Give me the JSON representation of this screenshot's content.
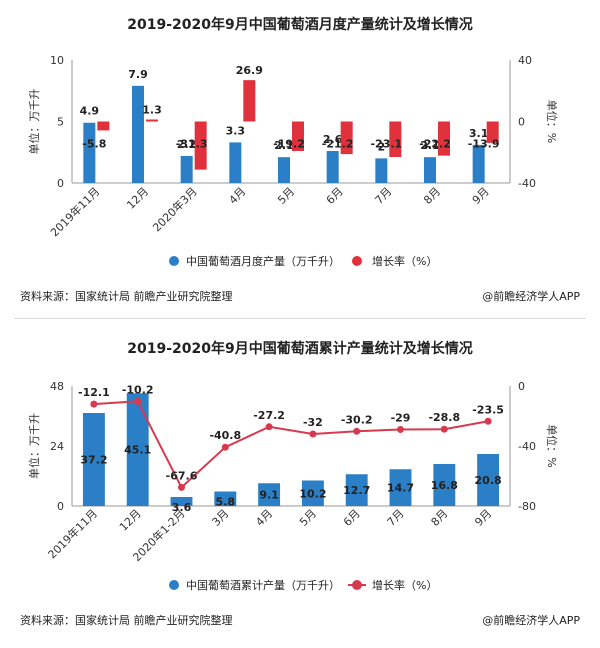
{
  "chart_data": [
    {
      "type": "bar",
      "title": "2019-2020年9月中国葡萄酒月度产量统计及增长情况",
      "categories": [
        "2019年11月",
        "12月",
        "2020年3月",
        "4月",
        "5月",
        "6月",
        "7月",
        "8月",
        "9月"
      ],
      "series": [
        {
          "name": "中国葡萄酒月度产量（万千升）",
          "type": "bar",
          "axis": "left",
          "color": "#2a7fc6",
          "values": [
            4.9,
            7.9,
            2.2,
            3.3,
            2.1,
            2.6,
            2,
            2.1,
            3.1
          ]
        },
        {
          "name": "增长率（%）",
          "type": "bar",
          "axis": "right",
          "color": "#e0313c",
          "values": [
            -5.8,
            1.3,
            -31.3,
            26.9,
            -19.2,
            -21.2,
            -23.1,
            -22.2,
            -13.9
          ]
        }
      ],
      "ylabel_left": "单位：万千升",
      "ylabel_right": "单位：%",
      "ylim_left": [
        0,
        10
      ],
      "yticks_left": [
        "0",
        "5",
        "10"
      ],
      "ylim_right": [
        -40,
        40
      ],
      "yticks_right": [
        "-40",
        "0",
        "40"
      ]
    },
    {
      "type": "bar",
      "title": "2019-2020年9月中国葡萄酒累计产量统计及增长情况",
      "categories": [
        "2019年11月",
        "12月",
        "2020年1-2月",
        "3月",
        "4月",
        "5月",
        "6月",
        "7月",
        "8月",
        "9月"
      ],
      "series": [
        {
          "name": "中国葡萄酒累计产量（万千升）",
          "type": "bar",
          "axis": "left",
          "color": "#2a7fc6",
          "values": [
            37.2,
            45.1,
            3.6,
            5.8,
            9.1,
            10.2,
            12.7,
            14.7,
            16.8,
            20.8
          ]
        },
        {
          "name": "增长率（%）",
          "type": "line",
          "axis": "right",
          "color": "#d8394f",
          "values": [
            -12.1,
            -10.2,
            -67.6,
            -40.8,
            -27.2,
            -32,
            -30.2,
            -29,
            -28.8,
            -23.5
          ]
        }
      ],
      "ylabel_left": "单位：万千升",
      "ylabel_right": "单位：%",
      "ylim_left": [
        0,
        48
      ],
      "yticks_left": [
        "0",
        "24",
        "48"
      ],
      "ylim_right": [
        -80,
        0
      ],
      "yticks_right": [
        "-80",
        "-40",
        "0"
      ]
    }
  ],
  "footer": {
    "source": "资料来源：国家统计局 前瞻产业研究院整理",
    "brand": "@前瞻经济学人APP"
  },
  "watermark": "前瞻产业研究院"
}
